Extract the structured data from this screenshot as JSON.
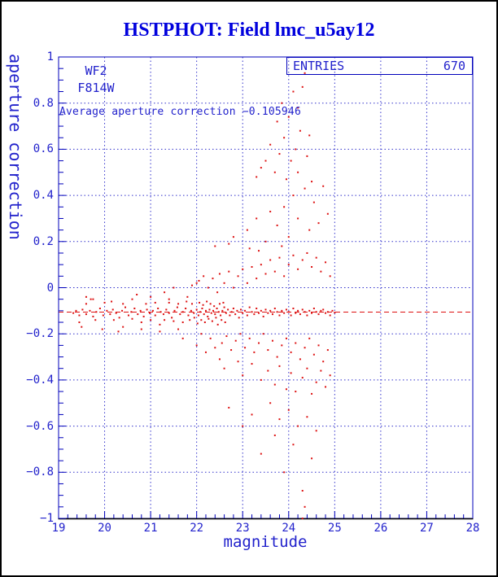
{
  "title": "HSTPHOT: Field lmc_u5ay12",
  "annotations": {
    "camera": "WF2",
    "filter": "F814W",
    "average_text": "Average aperture correction −0.105946"
  },
  "entries_box": {
    "label": "ENTRIES",
    "value": "670"
  },
  "colors": {
    "title": "#0000dd",
    "frame": "#0000bb",
    "grid": "#3333cc",
    "tick": "#0000bb",
    "text": "#2222cc",
    "points": "#dd1111",
    "mean_line": "#dd1111",
    "bottom_axis": "#000000",
    "outer_border": "#000000",
    "background": "#ffffff"
  },
  "chart_data": {
    "type": "scatter",
    "title": "HSTPHOT: Field lmc_u5ay12",
    "xlabel": "magnitude",
    "ylabel": "aperture correction",
    "xlim": [
      19,
      28
    ],
    "ylim": [
      -1,
      1
    ],
    "grid": true,
    "x_tick_values": [
      19,
      20,
      21,
      22,
      23,
      24,
      25,
      26,
      27,
      28
    ],
    "x_tick_labels": [
      "19",
      "20",
      "21",
      "22",
      "23",
      "24",
      "25",
      "26",
      "27",
      "28"
    ],
    "x_minor_step": 0.2,
    "y_tick_values": [
      1,
      0.8,
      0.6,
      0.4,
      0.2,
      0,
      -0.2,
      -0.4,
      -0.6,
      -0.8,
      -1
    ],
    "y_tick_labels": [
      "1",
      "0.8",
      "0.6",
      "0.4",
      "0.2",
      "0",
      "−0.2",
      "−0.4",
      "−0.6",
      "−0.8",
      "−1"
    ],
    "y_minor_step": 0.05,
    "entries": 670,
    "average_aperture_correction": -0.105946,
    "mean_line": {
      "y": -0.105946,
      "style": "dashed"
    },
    "points": [
      [
        19.32,
        -0.11
      ],
      [
        19.38,
        -0.1
      ],
      [
        19.45,
        -0.12
      ],
      [
        19.52,
        -0.095
      ],
      [
        19.6,
        -0.115
      ],
      [
        19.68,
        -0.1
      ],
      [
        19.75,
        -0.125
      ],
      [
        19.82,
        -0.105
      ],
      [
        19.9,
        -0.09
      ],
      [
        19.97,
        -0.12
      ],
      [
        20.05,
        -0.1
      ],
      [
        20.12,
        -0.115
      ],
      [
        20.18,
        -0.095
      ],
      [
        20.25,
        -0.11
      ],
      [
        20.32,
        -0.13
      ],
      [
        20.38,
        -0.1
      ],
      [
        20.45,
        -0.085
      ],
      [
        20.52,
        -0.12
      ],
      [
        20.58,
        -0.105
      ],
      [
        20.65,
        -0.09
      ],
      [
        20.72,
        -0.115
      ],
      [
        20.78,
        -0.1
      ],
      [
        20.85,
        -0.125
      ],
      [
        20.92,
        -0.095
      ],
      [
        20.98,
        -0.11
      ],
      [
        21.05,
        -0.1
      ],
      [
        21.1,
        -0.12
      ],
      [
        21.16,
        -0.09
      ],
      [
        21.22,
        -0.105
      ],
      [
        21.28,
        -0.115
      ],
      [
        21.34,
        -0.095
      ],
      [
        21.4,
        -0.11
      ],
      [
        21.46,
        -0.13
      ],
      [
        21.52,
        -0.1
      ],
      [
        21.58,
        -0.085
      ],
      [
        21.64,
        -0.115
      ],
      [
        21.7,
        -0.105
      ],
      [
        21.76,
        -0.09
      ],
      [
        21.82,
        -0.12
      ],
      [
        21.88,
        -0.1
      ],
      [
        21.94,
        -0.11
      ],
      [
        22.0,
        -0.095
      ],
      [
        22.04,
        -0.12
      ],
      [
        22.08,
        -0.105
      ],
      [
        22.12,
        -0.09
      ],
      [
        22.16,
        -0.115
      ],
      [
        22.2,
        -0.1
      ],
      [
        22.24,
        -0.125
      ],
      [
        22.28,
        -0.095
      ],
      [
        22.32,
        -0.11
      ],
      [
        22.36,
        -0.1
      ],
      [
        22.4,
        -0.115
      ],
      [
        22.44,
        -0.09
      ],
      [
        22.48,
        -0.105
      ],
      [
        22.52,
        -0.12
      ],
      [
        22.56,
        -0.1
      ],
      [
        22.6,
        -0.085
      ],
      [
        22.64,
        -0.11
      ],
      [
        22.68,
        -0.095
      ],
      [
        22.72,
        -0.12
      ],
      [
        22.76,
        -0.105
      ],
      [
        22.8,
        -0.09
      ],
      [
        22.84,
        -0.115
      ],
      [
        22.88,
        -0.1
      ],
      [
        22.92,
        -0.13
      ],
      [
        22.96,
        -0.095
      ],
      [
        23.0,
        -0.11
      ],
      [
        23.05,
        -0.1
      ],
      [
        23.1,
        -0.12
      ],
      [
        23.15,
        -0.085
      ],
      [
        23.2,
        -0.105
      ],
      [
        23.25,
        -0.115
      ],
      [
        23.3,
        -0.09
      ],
      [
        23.35,
        -0.11
      ],
      [
        23.4,
        -0.1
      ],
      [
        23.45,
        -0.125
      ],
      [
        23.5,
        -0.095
      ],
      [
        23.55,
        -0.11
      ],
      [
        23.6,
        -0.1
      ],
      [
        23.65,
        -0.115
      ],
      [
        23.7,
        -0.09
      ],
      [
        23.75,
        -0.105
      ],
      [
        23.8,
        -0.12
      ],
      [
        23.85,
        -0.1
      ],
      [
        23.9,
        -0.11
      ],
      [
        23.95,
        -0.095
      ],
      [
        24.0,
        -0.105
      ],
      [
        24.05,
        -0.12
      ],
      [
        24.1,
        -0.09
      ],
      [
        24.15,
        -0.11
      ],
      [
        24.2,
        -0.1
      ],
      [
        24.25,
        -0.115
      ],
      [
        24.3,
        -0.095
      ],
      [
        24.35,
        -0.105
      ],
      [
        24.4,
        -0.12
      ],
      [
        24.45,
        -0.1
      ],
      [
        24.5,
        -0.11
      ],
      [
        24.55,
        -0.09
      ],
      [
        24.6,
        -0.105
      ],
      [
        24.65,
        -0.115
      ],
      [
        24.7,
        -0.1
      ],
      [
        24.75,
        -0.095
      ],
      [
        24.8,
        -0.11
      ],
      [
        24.85,
        -0.105
      ],
      [
        24.9,
        -0.12
      ],
      [
        24.95,
        -0.1
      ],
      [
        25.0,
        -0.108
      ],
      [
        21.85,
        -0.14
      ],
      [
        21.9,
        -0.07
      ],
      [
        21.95,
        -0.13
      ],
      [
        22.02,
        -0.155
      ],
      [
        22.06,
        -0.065
      ],
      [
        22.1,
        -0.14
      ],
      [
        22.14,
        -0.075
      ],
      [
        22.18,
        -0.15
      ],
      [
        22.22,
        -0.06
      ],
      [
        22.26,
        -0.135
      ],
      [
        22.3,
        -0.07
      ],
      [
        22.34,
        -0.145
      ],
      [
        22.38,
        -0.08
      ],
      [
        22.42,
        -0.13
      ],
      [
        22.46,
        -0.16
      ],
      [
        22.5,
        -0.07
      ],
      [
        22.54,
        -0.14
      ],
      [
        22.58,
        -0.065
      ],
      [
        22.62,
        -0.15
      ],
      [
        21.78,
        -0.06
      ],
      [
        21.7,
        -0.15
      ],
      [
        21.6,
        -0.07
      ],
      [
        21.5,
        -0.145
      ],
      [
        21.4,
        -0.065
      ],
      [
        21.3,
        -0.14
      ],
      [
        21.2,
        -0.16
      ],
      [
        21.1,
        -0.065
      ],
      [
        21.0,
        -0.14
      ],
      [
        20.9,
        -0.07
      ],
      [
        20.8,
        -0.15
      ],
      [
        20.6,
        -0.135
      ],
      [
        20.4,
        -0.07
      ],
      [
        20.2,
        -0.14
      ],
      [
        20.0,
        -0.065
      ],
      [
        19.8,
        -0.14
      ],
      [
        19.6,
        -0.07
      ],
      [
        19.45,
        -0.15
      ],
      [
        21.3,
        -0.02
      ],
      [
        21.5,
        0.0
      ],
      [
        21.7,
        -0.22
      ],
      [
        21.9,
        0.01
      ],
      [
        22.0,
        -0.25
      ],
      [
        22.05,
        0.03
      ],
      [
        22.1,
        -0.2
      ],
      [
        22.15,
        0.05
      ],
      [
        22.2,
        -0.28
      ],
      [
        22.25,
        0.0
      ],
      [
        22.3,
        -0.22
      ],
      [
        22.35,
        0.04
      ],
      [
        22.4,
        -0.26
      ],
      [
        22.45,
        -0.02
      ],
      [
        22.5,
        0.06
      ],
      [
        22.55,
        -0.24
      ],
      [
        22.6,
        0.02
      ],
      [
        22.65,
        -0.21
      ],
      [
        22.7,
        0.07
      ],
      [
        22.75,
        -0.27
      ],
      [
        22.8,
        0.0
      ],
      [
        22.85,
        -0.23
      ],
      [
        22.9,
        0.05
      ],
      [
        22.95,
        -0.2
      ],
      [
        23.0,
        0.08
      ],
      [
        23.05,
        -0.26
      ],
      [
        23.1,
        0.02
      ],
      [
        23.15,
        -0.22
      ],
      [
        23.2,
        0.09
      ],
      [
        23.25,
        -0.28
      ],
      [
        23.3,
        0.04
      ],
      [
        23.35,
        -0.24
      ],
      [
        23.4,
        0.1
      ],
      [
        23.45,
        -0.2
      ],
      [
        23.5,
        0.06
      ],
      [
        23.55,
        -0.27
      ],
      [
        23.6,
        0.12
      ],
      [
        23.65,
        -0.23
      ],
      [
        23.7,
        0.07
      ],
      [
        23.75,
        -0.3
      ],
      [
        23.8,
        0.13
      ],
      [
        23.85,
        -0.25
      ],
      [
        23.9,
        0.05
      ],
      [
        23.95,
        -0.22
      ],
      [
        24.0,
        0.1
      ],
      [
        24.05,
        -0.28
      ],
      [
        24.1,
        0.14
      ],
      [
        24.15,
        -0.24
      ],
      [
        24.2,
        0.08
      ],
      [
        24.25,
        -0.31
      ],
      [
        24.3,
        0.12
      ],
      [
        24.35,
        -0.26
      ],
      [
        24.4,
        0.15
      ],
      [
        24.45,
        -0.22
      ],
      [
        24.5,
        0.09
      ],
      [
        24.55,
        -0.29
      ],
      [
        24.6,
        0.13
      ],
      [
        24.65,
        -0.25
      ],
      [
        24.7,
        0.07
      ],
      [
        24.75,
        -0.32
      ],
      [
        24.8,
        0.11
      ],
      [
        24.85,
        -0.27
      ],
      [
        24.9,
        0.05
      ],
      [
        22.0,
        0.02
      ],
      [
        21.8,
        -0.04
      ],
      [
        21.6,
        -0.18
      ],
      [
        21.4,
        -0.05
      ],
      [
        21.2,
        -0.19
      ],
      [
        21.0,
        -0.04
      ],
      [
        20.8,
        -0.18
      ],
      [
        20.6,
        -0.05
      ],
      [
        20.4,
        -0.17
      ],
      [
        20.15,
        -0.06
      ],
      [
        19.95,
        -0.18
      ],
      [
        19.7,
        -0.05
      ],
      [
        19.5,
        -0.17
      ],
      [
        22.4,
        0.18
      ],
      [
        22.6,
        -0.35
      ],
      [
        22.8,
        0.22
      ],
      [
        23.0,
        -0.38
      ],
      [
        23.1,
        0.25
      ],
      [
        23.2,
        -0.33
      ],
      [
        23.3,
        0.3
      ],
      [
        23.4,
        -0.4
      ],
      [
        23.5,
        0.2
      ],
      [
        23.55,
        -0.36
      ],
      [
        23.6,
        0.33
      ],
      [
        23.7,
        -0.42
      ],
      [
        23.75,
        0.27
      ],
      [
        23.8,
        -0.34
      ],
      [
        23.9,
        0.35
      ],
      [
        23.95,
        -0.44
      ],
      [
        24.0,
        0.22
      ],
      [
        24.05,
        -0.37
      ],
      [
        24.1,
        0.4
      ],
      [
        24.15,
        -0.45
      ],
      [
        24.2,
        0.3
      ],
      [
        24.3,
        -0.39
      ],
      [
        24.35,
        0.43
      ],
      [
        24.4,
        -0.35
      ],
      [
        24.45,
        0.25
      ],
      [
        24.5,
        -0.46
      ],
      [
        24.55,
        0.37
      ],
      [
        24.6,
        -0.41
      ],
      [
        24.65,
        0.28
      ],
      [
        24.7,
        -0.36
      ],
      [
        24.75,
        0.44
      ],
      [
        24.8,
        -0.43
      ],
      [
        24.85,
        0.32
      ],
      [
        24.9,
        -0.38
      ],
      [
        23.15,
        0.17
      ],
      [
        22.9,
        -0.32
      ],
      [
        22.7,
        0.19
      ],
      [
        22.5,
        -0.31
      ],
      [
        23.35,
        0.16
      ],
      [
        23.85,
        0.18
      ],
      [
        23.3,
        0.48
      ],
      [
        23.5,
        0.55
      ],
      [
        23.6,
        0.62
      ],
      [
        23.7,
        0.5
      ],
      [
        23.75,
        0.72
      ],
      [
        23.8,
        0.58
      ],
      [
        23.85,
        0.8
      ],
      [
        23.9,
        0.65
      ],
      [
        23.95,
        0.47
      ],
      [
        24.0,
        0.74
      ],
      [
        24.05,
        0.55
      ],
      [
        24.1,
        0.85
      ],
      [
        24.15,
        0.6
      ],
      [
        24.2,
        0.5
      ],
      [
        24.25,
        0.68
      ],
      [
        24.3,
        0.87
      ],
      [
        24.35,
        0.93
      ],
      [
        24.4,
        0.57
      ],
      [
        24.45,
        0.66
      ],
      [
        24.5,
        0.46
      ],
      [
        24.2,
        0.78
      ],
      [
        23.4,
        0.52
      ],
      [
        22.7,
        -0.52
      ],
      [
        23.0,
        -0.6
      ],
      [
        23.2,
        -0.55
      ],
      [
        23.4,
        -0.72
      ],
      [
        23.6,
        -0.5
      ],
      [
        23.7,
        -0.64
      ],
      [
        23.8,
        -0.57
      ],
      [
        23.9,
        -0.8
      ],
      [
        24.0,
        -0.53
      ],
      [
        24.1,
        -0.68
      ],
      [
        24.2,
        -0.6
      ],
      [
        24.3,
        -0.88
      ],
      [
        24.35,
        -0.95
      ],
      [
        24.4,
        -0.56
      ],
      [
        24.5,
        -0.74
      ],
      [
        24.6,
        -0.62
      ],
      [
        24.3,
        -1.0
      ],
      [
        19.6,
        -0.04
      ],
      [
        19.75,
        -0.05
      ],
      [
        20.3,
        -0.19
      ],
      [
        20.7,
        -0.03
      ]
    ]
  }
}
